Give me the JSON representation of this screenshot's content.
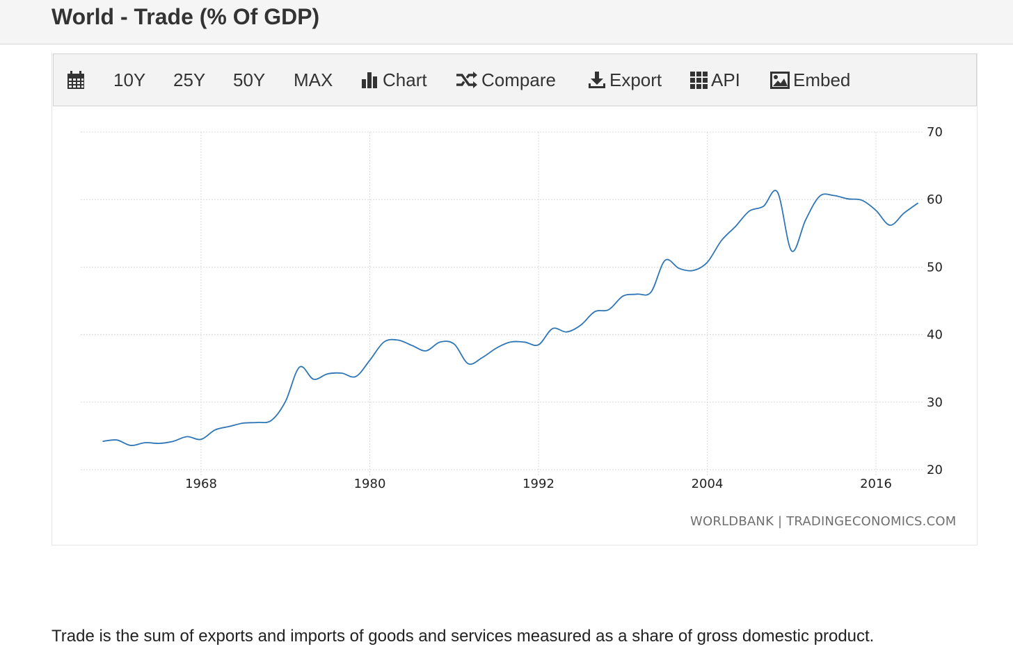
{
  "page": {
    "title": "World - Trade (% Of GDP)",
    "description": "Trade is the sum of exports and imports of goods and services measured as a share of gross domestic product."
  },
  "toolbar": {
    "calendar_icon": "calendar-icon",
    "items": [
      {
        "label": "10Y"
      },
      {
        "label": "25Y"
      },
      {
        "label": "50Y"
      },
      {
        "label": "MAX"
      },
      {
        "label": "Chart",
        "icon": "bar-chart-icon"
      },
      {
        "label": "Compare",
        "icon": "shuffle-icon"
      },
      {
        "label": "Export",
        "icon": "download-icon"
      },
      {
        "label": "API",
        "icon": "grid-icon"
      },
      {
        "label": "Embed",
        "icon": "image-icon"
      }
    ]
  },
  "chart_data": {
    "type": "line",
    "title": "",
    "xlabel": "",
    "ylabel": "",
    "x_ticks": [
      1968,
      1980,
      1992,
      2004,
      2016
    ],
    "y_ticks": [
      20,
      30,
      40,
      50,
      60,
      70
    ],
    "ylim": [
      20,
      70
    ],
    "xlim": [
      1960,
      2018
    ],
    "y_axis_side": "right",
    "grid": true,
    "line_color": "#2e75b6",
    "source": "WORLDBANK | TRADINGECONOMICS.COM",
    "series": [
      {
        "x": [
          1960,
          1961,
          1962,
          1963,
          1964,
          1965,
          1966,
          1967,
          1968,
          1969,
          1970,
          1971,
          1972,
          1973,
          1974,
          1975,
          1976,
          1977,
          1978,
          1979,
          1980,
          1981,
          1982,
          1983,
          1984,
          1985,
          1986,
          1987,
          1988,
          1989,
          1990,
          1991,
          1992,
          1993,
          1994,
          1995,
          1996,
          1997,
          1998,
          1999,
          2000,
          2001,
          2002,
          2003,
          2004,
          2005,
          2006,
          2007,
          2008,
          2009,
          2010,
          2011,
          2012,
          2013,
          2014,
          2015,
          2016,
          2017,
          2018
        ],
        "y": [
          24.2,
          24.4,
          23.6,
          24.0,
          23.9,
          24.2,
          24.9,
          24.5,
          25.9,
          26.4,
          26.9,
          27.0,
          27.3,
          30.1,
          35.2,
          33.4,
          34.2,
          34.3,
          33.8,
          36.2,
          38.9,
          39.2,
          38.4,
          37.6,
          38.9,
          38.6,
          35.7,
          36.6,
          38.0,
          38.9,
          38.9,
          38.5,
          40.9,
          40.4,
          41.4,
          43.4,
          43.7,
          45.7,
          46.0,
          46.3,
          51.0,
          49.8,
          49.5,
          50.7,
          53.9,
          56.0,
          58.3,
          59.0,
          61.1,
          52.4,
          57.0,
          60.5,
          60.6,
          60.1,
          59.9,
          58.4,
          56.2,
          58.0,
          59.5
        ]
      }
    ]
  }
}
